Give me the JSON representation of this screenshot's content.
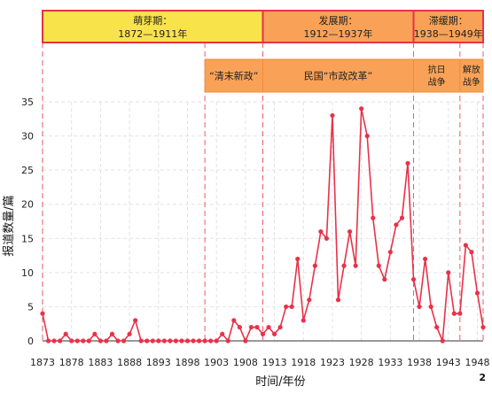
{
  "chart_data": {
    "type": "line",
    "xlabel": "时间/年份",
    "ylabel": "报道数量/篇",
    "xlim": [
      1873,
      1949
    ],
    "ylim": [
      0,
      35
    ],
    "x_ticks": [
      "1873",
      "1878",
      "1883",
      "1888",
      "1893",
      "1898",
      "1903",
      "1908",
      "1913",
      "1918",
      "1923",
      "1928",
      "1933",
      "1938",
      "1943",
      "1948"
    ],
    "y_ticks": [
      "0",
      "5",
      "10",
      "15",
      "20",
      "25",
      "30",
      "35"
    ],
    "grid": true,
    "page_number": "2",
    "colors": {
      "line": "#e8324a",
      "marker": "#e8324a",
      "band_yellow": "#f9e34a",
      "band_orange": "#f9a257",
      "band_border": "#e8324a",
      "divider": "#e8324a"
    },
    "periods": [
      {
        "title": "萌芽期：",
        "range": "1872—1911年",
        "start": 1873,
        "end": 1911,
        "color": "yellow"
      },
      {
        "title": "发展期：",
        "range": "1912—1937年",
        "start": 1911,
        "end": 1937,
        "color": "orange"
      },
      {
        "title": "滞缓期：",
        "range": "1938—1949年",
        "start": 1937,
        "end": 1949,
        "color": "orange"
      }
    ],
    "subperiods": [
      {
        "label": "“清末新政”",
        "start": 1901,
        "end": 1911
      },
      {
        "label": "民国“市政改革”",
        "start": 1911,
        "end": 1937
      },
      {
        "label": "抗日\n战争",
        "start": 1937,
        "end": 1945
      },
      {
        "label": "解放\n战争",
        "start": 1945,
        "end": 1949
      }
    ],
    "series": [
      {
        "x": [
          1873,
          1874,
          1875,
          1876,
          1877,
          1878,
          1879,
          1880,
          1881,
          1882,
          1883,
          1884,
          1885,
          1886,
          1887,
          1888,
          1889,
          1890,
          1891,
          1892,
          1893,
          1894,
          1895,
          1896,
          1897,
          1898,
          1899,
          1900,
          1901,
          1902,
          1903,
          1904,
          1905,
          1906,
          1907,
          1908,
          1909,
          1910,
          1911,
          1912,
          1913,
          1914,
          1915,
          1916,
          1917,
          1918,
          1919,
          1920,
          1921,
          1922,
          1923,
          1924,
          1925,
          1926,
          1927,
          1928,
          1929,
          1930,
          1931,
          1932,
          1933,
          1934,
          1935,
          1936,
          1937,
          1938,
          1939,
          1940,
          1941,
          1942,
          1943,
          1944,
          1945,
          1946,
          1947,
          1948,
          1949
        ],
        "values": [
          4,
          0,
          0,
          0,
          1,
          0,
          0,
          0,
          0,
          1,
          0,
          0,
          1,
          0,
          0,
          1,
          3,
          0,
          0,
          0,
          0,
          0,
          0,
          0,
          0,
          0,
          0,
          0,
          0,
          0,
          0,
          1,
          0,
          3,
          2,
          0,
          2,
          2,
          1,
          2,
          1,
          2,
          5,
          5,
          12,
          3,
          6,
          11,
          16,
          15,
          33,
          6,
          11,
          16,
          11,
          34,
          30,
          18,
          11,
          9,
          13,
          17,
          18,
          26,
          9,
          5,
          12,
          5,
          2,
          0,
          10,
          4,
          4,
          14,
          13,
          7,
          2
        ]
      }
    ]
  }
}
